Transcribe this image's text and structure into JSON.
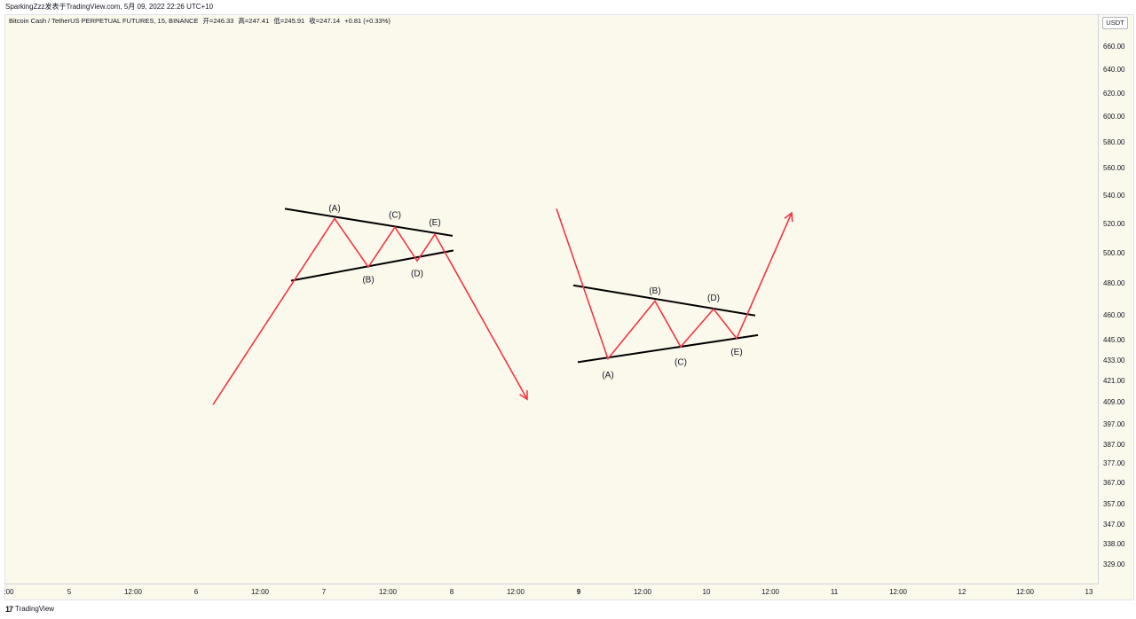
{
  "header": {
    "publisher": "SparkingZzz发表于TradingView.com,  5月 09, 2022 22:26 UTC+10"
  },
  "legend": {
    "symbol": "Bitcoin Cash / TetherUS PERPETUAL FUTURES, 15, BINANCE",
    "open": "开=246.33",
    "high": "高=247.41",
    "low": "低=245.91",
    "close": "收=247.14",
    "change": "+0.81 (+0.33%)"
  },
  "price_axis": {
    "currency": "USDT",
    "ticks": [
      "660.00",
      "640.00",
      "620.00",
      "600.00",
      "580.00",
      "560.00",
      "540.00",
      "520.00",
      "500.00",
      "480.00",
      "460.00",
      "445.00",
      "433.00",
      "421.00",
      "409.00",
      "397.00",
      "387.00",
      "377.00",
      "367.00",
      "357.00",
      "347.00",
      "338.00",
      "329.00"
    ]
  },
  "time_axis": {
    "ticks": [
      ":00",
      "5",
      "12:00",
      "6",
      "12:00",
      "7",
      "12:00",
      "8",
      "12:00",
      "9",
      "12:00",
      "10",
      "12:00",
      "11",
      "12:00",
      "12",
      "12:00",
      "13"
    ]
  },
  "footer": {
    "brand": "TradingView",
    "logo": "17"
  },
  "chart_data": {
    "type": "line",
    "title": "",
    "xlabel": "",
    "ylabel": "",
    "y_scale": "log",
    "ylim": [
      323,
      672
    ],
    "grid": false,
    "colors": {
      "wave": "#f23645",
      "trendline": "#000000",
      "background": "#fbf8ec"
    },
    "series": [
      {
        "pattern": "contracting_triangle_top",
        "points": [
          {
            "label": "",
            "y": 408
          },
          {
            "label": "(A)",
            "y": 524
          },
          {
            "label": "(B)",
            "y": 491
          },
          {
            "label": "(C)",
            "y": 518
          },
          {
            "label": "(D)",
            "y": 495
          },
          {
            "label": "(E)",
            "y": 513
          },
          {
            "label": "",
            "y": 411
          }
        ],
        "trendlines": [
          {
            "y_start": 531,
            "y_end": 512
          },
          {
            "y_start": 482,
            "y_end": 502
          }
        ]
      },
      {
        "pattern": "contracting_triangle_bottom",
        "points": [
          {
            "label": "",
            "y": 531
          },
          {
            "label": "(A)",
            "y": 434
          },
          {
            "label": "(B)",
            "y": 469
          },
          {
            "label": "(C)",
            "y": 441
          },
          {
            "label": "(D)",
            "y": 464
          },
          {
            "label": "(E)",
            "y": 446
          },
          {
            "label": "",
            "y": 528
          }
        ],
        "trendlines": [
          {
            "y_start": 479,
            "y_end": 460
          },
          {
            "y_start": 432,
            "y_end": 448
          }
        ]
      }
    ]
  }
}
